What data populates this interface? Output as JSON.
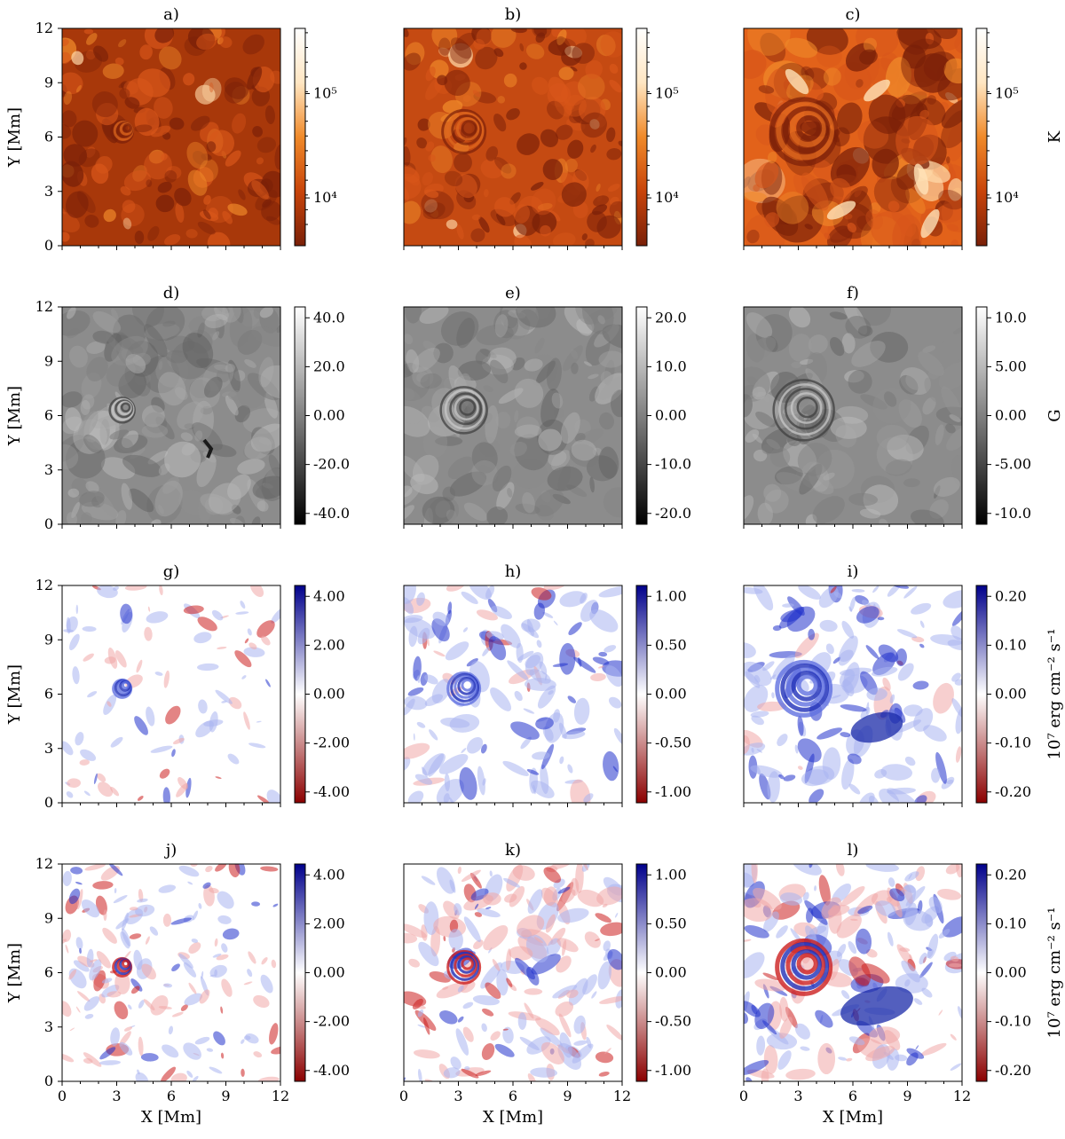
{
  "chart_data": {
    "type": "heatmap",
    "layout": "4 rows x 3 columns of 2D maps with individual colorbars",
    "panel_titles": [
      "a)",
      "b)",
      "c)",
      "d)",
      "e)",
      "f)",
      "g)",
      "h)",
      "i)",
      "j)",
      "k)",
      "l)"
    ],
    "xlabel": "X [Mm]",
    "ylabel": "Y [Mm]",
    "xlim": [
      0,
      12
    ],
    "ylim": [
      0,
      12
    ],
    "xticks": [
      "0",
      "3",
      "6",
      "9",
      "12"
    ],
    "yticks": [
      "0",
      "3",
      "6",
      "9",
      "12"
    ],
    "rows": [
      {
        "colormap": "orange",
        "unit_label": "K",
        "scale": "log",
        "colorbar_ticks": [
          [
            "10⁵",
            "10⁴"
          ],
          [
            "10⁵",
            "10⁴"
          ],
          [
            "10⁵",
            "10⁴"
          ]
        ]
      },
      {
        "colormap": "gray",
        "unit_label": "G",
        "scale": "linear",
        "colorbar_ticks": [
          [
            "40.0",
            "20.0",
            "0.00",
            "-20.0",
            "-40.0"
          ],
          [
            "20.0",
            "10.0",
            "0.00",
            "-10.0",
            "-20.0"
          ],
          [
            "10.0",
            "5.00",
            "0.00",
            "-5.00",
            "-10.0"
          ]
        ]
      },
      {
        "colormap": "red-white-blue",
        "unit_label": "10⁷ erg cm⁻² s⁻¹",
        "scale": "linear",
        "colorbar_ticks": [
          [
            "4.00",
            "2.00",
            "0.00",
            "-2.00",
            "-4.00"
          ],
          [
            "1.00",
            "0.50",
            "0.00",
            "-0.50",
            "-1.00"
          ],
          [
            "0.20",
            "0.10",
            "0.00",
            "-0.10",
            "-0.20"
          ]
        ]
      },
      {
        "colormap": "red-white-blue",
        "unit_label": "10⁷ erg cm⁻² s⁻¹",
        "scale": "linear",
        "colorbar_ticks": [
          [
            "4.00",
            "2.00",
            "0.00",
            "-2.00",
            "-4.00"
          ],
          [
            "1.00",
            "0.50",
            "0.00",
            "-0.50",
            "-1.00"
          ],
          [
            "0.20",
            "0.10",
            "0.00",
            "-0.10",
            "-0.20"
          ]
        ]
      }
    ],
    "features": {
      "vortex_center_mm": [
        3.3,
        6.3
      ],
      "row_colors": {
        "orange": [
          "#7a2008",
          "#c8440a",
          "#f08a2a",
          "#ffe6c2",
          "#ffffff"
        ],
        "gray": [
          "#000000",
          "#808080",
          "#ffffff"
        ],
        "diverging": [
          "#8b0000",
          "#ffffff",
          "#00008b"
        ]
      }
    }
  }
}
